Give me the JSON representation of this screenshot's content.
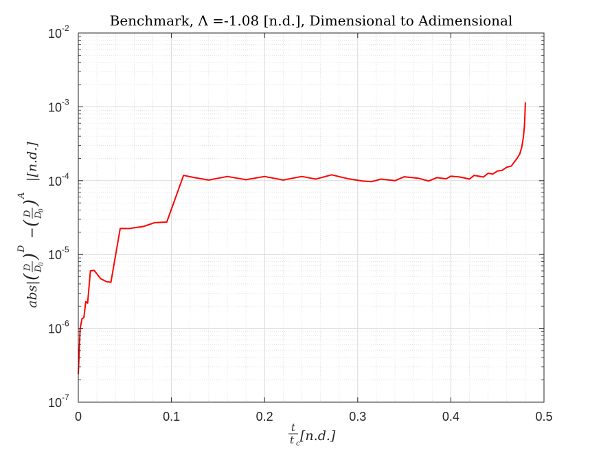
{
  "chart_data": {
    "type": "line",
    "title": "Benchmark, Λ =-1.08 [n.d.], Dimensional to Adimensional",
    "xlabel": "t/t_c [n.d.]",
    "ylabel": "abs|(D/D0)^D - (D/D0)^A| [n.d.]",
    "xlabel_parts": {
      "num": "t",
      "den": "t",
      "den_sub": "c",
      "unit": "[n.d.]"
    },
    "ylabel_parts": {
      "abs": "abs|",
      "frac_num": "D",
      "frac_den": "D",
      "frac_den_sub": "0",
      "sup1": "D",
      "minus": "−",
      "sup2": "A",
      "unit": "|[n.d.]"
    },
    "xlim": [
      0,
      0.5
    ],
    "ylim": [
      1e-07,
      0.01
    ],
    "yscale": "log",
    "grid": true,
    "minor_grid": true,
    "x_ticks": [
      "0",
      "0.1",
      "0.2",
      "0.3",
      "0.4",
      "0.5"
    ],
    "x_tick_values": [
      0,
      0.1,
      0.2,
      0.3,
      0.4,
      0.5
    ],
    "y_ticks": [
      {
        "base": "10",
        "exp": "-7",
        "value": 1e-07
      },
      {
        "base": "10",
        "exp": "-6",
        "value": 1e-06
      },
      {
        "base": "10",
        "exp": "-5",
        "value": 1e-05
      },
      {
        "base": "10",
        "exp": "-4",
        "value": 0.0001
      },
      {
        "base": "10",
        "exp": "-3",
        "value": 0.001
      },
      {
        "base": "10",
        "exp": "-2",
        "value": 0.01
      }
    ],
    "series": [
      {
        "color": "#ff0000",
        "x": [
          0.0,
          0.002,
          0.004,
          0.006,
          0.008,
          0.01,
          0.013,
          0.017,
          0.024,
          0.03,
          0.035,
          0.045,
          0.055,
          0.07,
          0.082,
          0.095,
          0.113,
          0.125,
          0.14,
          0.16,
          0.18,
          0.2,
          0.22,
          0.24,
          0.255,
          0.272,
          0.29,
          0.305,
          0.315,
          0.325,
          0.34,
          0.35,
          0.365,
          0.376,
          0.385,
          0.395,
          0.4,
          0.41,
          0.42,
          0.425,
          0.43,
          0.435,
          0.44,
          0.445,
          0.45,
          0.455,
          0.46,
          0.465,
          0.468,
          0.471,
          0.474,
          0.476,
          0.477,
          0.478,
          0.479,
          0.4795,
          0.48
        ],
        "y": [
          2.4e-07,
          1e-06,
          1.35e-06,
          1.4e-06,
          2.3e-06,
          2.2e-06,
          6e-06,
          6.1e-06,
          4.7e-06,
          4.3e-06,
          4.2e-06,
          2.25e-05,
          2.25e-05,
          2.4e-05,
          2.7e-05,
          2.75e-05,
          0.000118,
          0.00011,
          0.000102,
          0.000114,
          0.000103,
          0.000114,
          0.000102,
          0.000114,
          0.000105,
          0.00012,
          0.000106,
          9.9e-05,
          9.7e-05,
          0.000105,
          0.0001,
          0.000113,
          0.000108,
          9.9e-05,
          0.00011,
          0.000106,
          0.000115,
          0.000112,
          0.000105,
          0.000118,
          0.000115,
          0.000112,
          0.000126,
          0.000123,
          0.000135,
          0.000138,
          0.000152,
          0.000158,
          0.000178,
          0.0002,
          0.00023,
          0.00028,
          0.00033,
          0.0004,
          0.00055,
          0.00075,
          0.00115
        ]
      }
    ]
  }
}
